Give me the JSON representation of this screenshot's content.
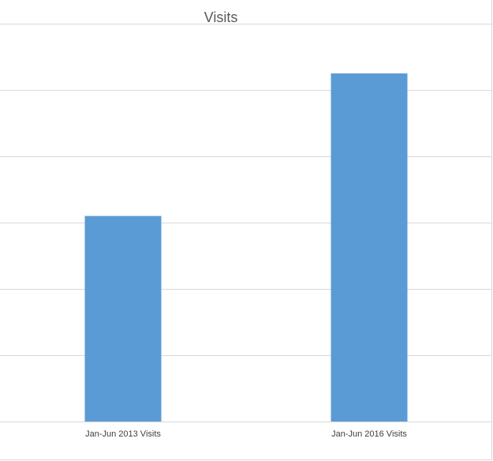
{
  "chart_data": {
    "type": "bar",
    "title": "Visits",
    "categories": [
      "Jan-Jun 2013 Visits",
      "Jan-Jun 2016 Visits"
    ],
    "values": [
      3.1,
      5.25
    ],
    "ylim": [
      0,
      6
    ],
    "grid": true,
    "colors": {
      "bar": "#5b9bd5",
      "grid": "#d9d9d9"
    }
  }
}
